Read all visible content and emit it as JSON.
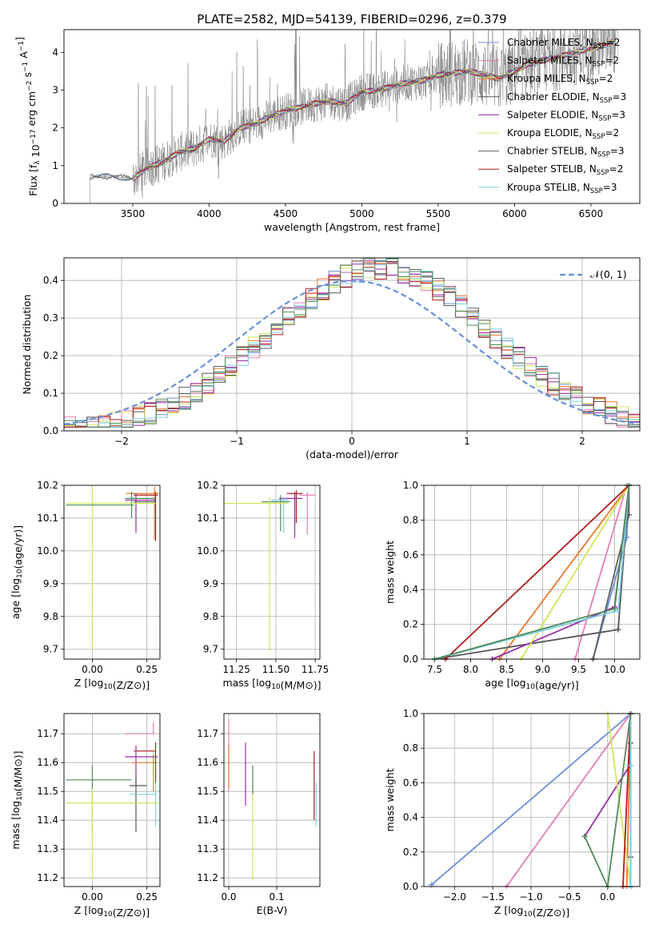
{
  "figure": {
    "title": "PLATE=2582, MJD=54139, FIBERID=0296, z=0.379"
  },
  "colors": {
    "chabrier_miles": "#6a8fd8",
    "salpeter_miles": "#e27fb5",
    "kroupa_miles": "#e8782b",
    "chabrier_elodie": "#555555",
    "salpeter_elodie": "#9a2ba8",
    "kroupa_elodie": "#cfe65a",
    "chabrier_stelib": "#606060",
    "salpeter_stelib": "#b01c1c",
    "kroupa_stelib": "#7fd0e0",
    "green": "#4f8a5a",
    "data_gray": "#7f7f7f",
    "grid": "#b0b0b0"
  },
  "chart_data": [
    {
      "type": "line",
      "id": "spectrum",
      "xlabel": "wavelength [Angstrom, rest frame]",
      "ylabel": "Flux [f_λ 10^-17 erg cm^-2 s^-1 A^-1]",
      "xlim": [
        3050,
        6820
      ],
      "ylim": [
        0,
        4.6
      ],
      "xticks": [
        3500,
        4000,
        4500,
        5000,
        5500,
        6000,
        6500
      ],
      "yticks": [
        0,
        1,
        2,
        3,
        4
      ],
      "grid": false,
      "legend_position": "top-right",
      "data_wave_range": [
        3220,
        6680
      ],
      "model_wave_range": [
        3500,
        6660
      ],
      "model_curve": {
        "wavelength": [
          3220,
          3300,
          3400,
          3500,
          3600,
          3700,
          3800,
          3900,
          4000,
          4100,
          4200,
          4300,
          4400,
          4500,
          4600,
          4700,
          4800,
          4900,
          5000,
          5100,
          5200,
          5300,
          5400,
          5500,
          5600,
          5700,
          5800,
          5900,
          6000,
          6100,
          6200,
          6300,
          6400,
          6500,
          6600,
          6660
        ],
        "flux": [
          0.7,
          0.72,
          0.7,
          0.65,
          0.95,
          1.1,
          1.35,
          1.45,
          1.7,
          1.65,
          2.0,
          2.1,
          2.3,
          2.45,
          2.55,
          2.65,
          2.7,
          2.65,
          2.95,
          3.0,
          3.1,
          3.2,
          3.25,
          3.4,
          3.45,
          3.5,
          3.4,
          3.3,
          3.5,
          3.7,
          3.8,
          3.9,
          4.0,
          4.1,
          4.2,
          4.3
        ]
      },
      "legend": [
        {
          "label": "Chabrier MILES, N",
          "sub": "SSP",
          "suffix": "=2",
          "color_key": "chabrier_miles"
        },
        {
          "label": "Salpeter MILES, N",
          "sub": "SSP",
          "suffix": "=2",
          "color_key": "salpeter_miles"
        },
        {
          "label": "Kroupa MILES, N",
          "sub": "SSP",
          "suffix": "=2",
          "color_key": "kroupa_miles"
        },
        {
          "label": "Chabrier ELODIE, N",
          "sub": "SSP",
          "suffix": "=3",
          "color_key": "chabrier_elodie"
        },
        {
          "label": "Salpeter ELODIE, N",
          "sub": "SSP",
          "suffix": "=3",
          "color_key": "salpeter_elodie"
        },
        {
          "label": "Kroupa ELODIE, N",
          "sub": "SSP",
          "suffix": "=2",
          "color_key": "kroupa_elodie"
        },
        {
          "label": "Chabrier STELIB, N",
          "sub": "SSP",
          "suffix": "=3",
          "color_key": "chabrier_stelib"
        },
        {
          "label": "Salpeter STELIB, N",
          "sub": "SSP",
          "suffix": "=2",
          "color_key": "salpeter_stelib"
        },
        {
          "label": "Kroupa STELIB, N",
          "sub": "SSP",
          "suffix": "=3",
          "color_key": "kroupa_stelib"
        }
      ]
    },
    {
      "type": "histogram",
      "id": "residuals",
      "xlabel": "(data-model)/error",
      "ylabel": "Normed distribution",
      "xlim": [
        -2.5,
        2.5
      ],
      "ylim": [
        0,
        0.46
      ],
      "xticks": [
        -2,
        -1,
        0,
        1,
        2
      ],
      "yticks": [
        0.0,
        0.1,
        0.2,
        0.3,
        0.4
      ],
      "grid": true,
      "legend_position": "top-right",
      "bin_width": 0.1,
      "legend": [
        {
          "label": "𝒩(0, 1)",
          "style": "dashed"
        }
      ],
      "reference_curve": {
        "name": "𝒩(0, 1)",
        "mean": 0,
        "sigma": 1
      }
    },
    {
      "type": "errorbar",
      "id": "age_vs_Z",
      "xlabel": "Z [log10(Z/Z⊙)]",
      "ylabel": "age  [log10(age/yr)]",
      "xlim": [
        -0.13,
        0.31
      ],
      "ylim": [
        9.67,
        10.2
      ],
      "xticks": [
        0.0,
        0.25
      ],
      "yticks": [
        9.7,
        9.8,
        9.9,
        10.0,
        10.1,
        10.2
      ],
      "grid": true,
      "points": [
        {
          "x": 0.285,
          "y": 10.175,
          "xerr": [
            0.13,
            0.02
          ],
          "yerr": [
            0.14,
            0.02
          ],
          "color_key": "kroupa_miles"
        },
        {
          "x": 0.29,
          "y": 10.17,
          "xerr": [
            0.1,
            0.01
          ],
          "yerr": [
            0.14,
            0.01
          ],
          "color_key": "salpeter_stelib"
        },
        {
          "x": 0.2,
          "y": 10.155,
          "xerr": [
            0.05,
            0.09
          ],
          "yerr": [
            0.1,
            0.02
          ],
          "color_key": "salpeter_elodie"
        },
        {
          "x": 0.18,
          "y": 10.16,
          "xerr": [
            0.03,
            0.11
          ],
          "yerr": [
            0.06,
            0.02
          ],
          "color_key": "green"
        },
        {
          "x": 0.29,
          "y": 10.15,
          "xerr": [
            0.1,
            0.0
          ],
          "yerr": [
            0.11,
            0.02
          ],
          "color_key": "chabrier_elodie"
        },
        {
          "x": 0.0,
          "y": 10.145,
          "xerr": [
            0.12,
            0.29
          ],
          "yerr": [
            0.45,
            0.05
          ],
          "color_key": "kroupa_elodie"
        },
        {
          "x": 0.19,
          "y": 10.14,
          "xerr": [
            0.31,
            0.0
          ],
          "yerr": [
            0.0,
            0.0
          ],
          "color_key": "green"
        }
      ]
    },
    {
      "type": "errorbar",
      "id": "age_vs_mass",
      "xlabel": "mass [log10(M/M⊙)]",
      "ylabel": "",
      "xlim": [
        11.17,
        11.78
      ],
      "ylim": [
        9.67,
        10.2
      ],
      "xticks": [
        11.25,
        11.5,
        11.75
      ],
      "yticks": [
        9.7,
        9.8,
        9.9,
        10.0,
        10.1,
        10.2
      ],
      "grid": true,
      "points": [
        {
          "x": 11.63,
          "y": 10.175,
          "xerr": [
            0.06,
            0.04
          ],
          "yerr": [
            0.09,
            0.01
          ],
          "color_key": "salpeter_stelib"
        },
        {
          "x": 11.7,
          "y": 10.17,
          "xerr": [
            0.05,
            0.05
          ],
          "yerr": [
            0.12,
            0.01
          ],
          "color_key": "salpeter_miles"
        },
        {
          "x": 11.62,
          "y": 10.16,
          "xerr": [
            0.1,
            0.05
          ],
          "yerr": [
            0.12,
            0.02
          ],
          "color_key": "salpeter_elodie"
        },
        {
          "x": 11.55,
          "y": 10.155,
          "xerr": [
            0.08,
            0.03
          ],
          "yerr": [
            0.1,
            0.01
          ],
          "color_key": "kroupa_stelib"
        },
        {
          "x": 11.53,
          "y": 10.15,
          "xerr": [
            0.12,
            0.06
          ],
          "yerr": [
            0.09,
            0.02
          ],
          "color_key": "green"
        },
        {
          "x": 11.46,
          "y": 10.145,
          "xerr": [
            0.3,
            0.12
          ],
          "yerr": [
            0.45,
            0.02
          ],
          "color_key": "kroupa_elodie"
        }
      ]
    },
    {
      "type": "line",
      "id": "massweight_vs_age",
      "xlabel": "age  [log10(age/yr)]",
      "ylabel": "mass weight",
      "xlim": [
        7.35,
        10.35
      ],
      "ylim": [
        0,
        1.0
      ],
      "xticks": [
        7.5,
        8.0,
        8.5,
        9.0,
        9.5,
        10.0
      ],
      "yticks": [
        0.0,
        0.2,
        0.4,
        0.6,
        0.8,
        1.0
      ],
      "grid": true,
      "series": [
        {
          "color_key": "chabrier_miles",
          "x": [
            9.7,
            10.17,
            10.2
          ],
          "y": [
            0.0,
            0.7,
            1.0
          ]
        },
        {
          "color_key": "salpeter_miles",
          "x": [
            9.45,
            10.17
          ],
          "y": [
            0.0,
            1.0
          ]
        },
        {
          "color_key": "kroupa_miles",
          "x": [
            8.4,
            10.2
          ],
          "y": [
            0.0,
            1.0
          ]
        },
        {
          "color_key": "chabrier_elodie",
          "x": [
            7.5,
            10.05,
            10.2
          ],
          "y": [
            0.0,
            0.17,
            1.0
          ]
        },
        {
          "color_key": "salpeter_elodie",
          "x": [
            8.3,
            10.0,
            10.2
          ],
          "y": [
            0.0,
            0.3,
            1.0
          ]
        },
        {
          "color_key": "kroupa_elodie",
          "x": [
            8.7,
            10.2
          ],
          "y": [
            0.0,
            1.0
          ]
        },
        {
          "color_key": "chabrier_stelib",
          "x": [
            9.7,
            10.2,
            10.2
          ],
          "y": [
            0.0,
            0.83,
            1.0
          ]
        },
        {
          "color_key": "salpeter_stelib",
          "x": [
            7.65,
            10.2
          ],
          "y": [
            0.0,
            1.0
          ]
        },
        {
          "color_key": "kroupa_stelib",
          "x": [
            7.5,
            10.05,
            10.2
          ],
          "y": [
            0.0,
            0.28,
            1.0
          ]
        },
        {
          "color_key": "green",
          "x": [
            7.5,
            10.0,
            10.2
          ],
          "y": [
            0.0,
            0.29,
            1.0
          ]
        }
      ]
    },
    {
      "type": "errorbar",
      "id": "mass_vs_Z",
      "xlabel": "Z [log10(Z/Z⊙)]",
      "ylabel": "mass [log10(M/M⊙)]",
      "xlim": [
        -0.13,
        0.31
      ],
      "ylim": [
        11.17,
        11.77
      ],
      "xticks": [
        0.0,
        0.25
      ],
      "yticks": [
        11.2,
        11.3,
        11.4,
        11.5,
        11.6,
        11.7
      ],
      "grid": true,
      "points": [
        {
          "x": 0.28,
          "y": 11.7,
          "xerr": [
            0.13,
            0.0
          ],
          "yerr": [
            0.0,
            0.04
          ],
          "color_key": "salpeter_miles"
        },
        {
          "x": 0.29,
          "y": 11.64,
          "xerr": [
            0.1,
            0.0
          ],
          "yerr": [
            0.11,
            0.03
          ],
          "color_key": "salpeter_stelib"
        },
        {
          "x": 0.2,
          "y": 11.62,
          "xerr": [
            0.05,
            0.1
          ],
          "yerr": [
            0.1,
            0.04
          ],
          "color_key": "salpeter_elodie"
        },
        {
          "x": 0.28,
          "y": 11.6,
          "xerr": [
            0.1,
            0.01
          ],
          "yerr": [
            0.1,
            0.03
          ],
          "color_key": "kroupa_miles"
        },
        {
          "x": 0.0,
          "y": 11.54,
          "xerr": [
            0.12,
            0.18
          ],
          "yerr": [
            0.2,
            0.05
          ],
          "color_key": "green"
        },
        {
          "x": 0.2,
          "y": 11.52,
          "xerr": [
            0.03,
            0.05
          ],
          "yerr": [
            0.16,
            0.03
          ],
          "color_key": "chabrier_elodie"
        },
        {
          "x": 0.29,
          "y": 11.49,
          "xerr": [
            0.12,
            0.0
          ],
          "yerr": [
            0.11,
            0.04
          ],
          "color_key": "kroupa_stelib"
        },
        {
          "x": 0.0,
          "y": 11.46,
          "xerr": [
            0.12,
            0.3
          ],
          "yerr": [
            0.27,
            0.05
          ],
          "color_key": "kroupa_elodie"
        }
      ]
    },
    {
      "type": "errorbar",
      "id": "mass_vs_EBV",
      "xlabel": "E(B-V)",
      "ylabel": "",
      "xlim": [
        -0.01,
        0.19
      ],
      "ylim": [
        11.17,
        11.77
      ],
      "xticks": [
        0.0,
        0.1
      ],
      "yticks": [
        11.2,
        11.3,
        11.4,
        11.5,
        11.6,
        11.7
      ],
      "grid": true,
      "points": [
        {
          "x": 0.0,
          "y": 11.7,
          "xerr": [
            0,
            0
          ],
          "yerr": [
            0.2,
            0.05
          ],
          "color_key": "salpeter_miles"
        },
        {
          "x": 0.0,
          "y": 11.6,
          "xerr": [
            0,
            0
          ],
          "yerr": [
            0.09,
            0.06
          ],
          "color_key": "kroupa_miles"
        },
        {
          "x": 0.035,
          "y": 11.6,
          "xerr": [
            0,
            0
          ],
          "yerr": [
            0.15,
            0.07
          ],
          "color_key": "salpeter_elodie"
        },
        {
          "x": 0.05,
          "y": 11.46,
          "xerr": [
            0,
            0
          ],
          "yerr": [
            0.27,
            0.07
          ],
          "color_key": "kroupa_elodie"
        },
        {
          "x": 0.05,
          "y": 11.54,
          "xerr": [
            0,
            0
          ],
          "yerr": [
            0.05,
            0.05
          ],
          "color_key": "green"
        },
        {
          "x": 0.178,
          "y": 11.55,
          "xerr": [
            0,
            0
          ],
          "yerr": [
            0.15,
            0.09
          ],
          "color_key": "salpeter_stelib"
        },
        {
          "x": 0.182,
          "y": 11.49,
          "xerr": [
            0,
            0
          ],
          "yerr": [
            0.11,
            0.04
          ],
          "color_key": "kroupa_stelib"
        }
      ]
    },
    {
      "type": "line",
      "id": "massweight_vs_Z",
      "xlabel": "Z [log10(Z/Z⊙)]",
      "ylabel": "mass weight",
      "xlim": [
        -2.4,
        0.42
      ],
      "ylim": [
        0,
        1.0
      ],
      "xticks": [
        -2.0,
        -1.5,
        -1.0,
        -0.5,
        0.0
      ],
      "yticks": [
        0.0,
        0.2,
        0.4,
        0.6,
        0.8,
        1.0
      ],
      "grid": true,
      "series": [
        {
          "color_key": "chabrier_miles",
          "x": [
            -2.3,
            0.3
          ],
          "y": [
            0.01,
            1.0
          ]
        },
        {
          "color_key": "salpeter_miles",
          "x": [
            -1.32,
            0.3
          ],
          "y": [
            0.0,
            1.0
          ]
        },
        {
          "color_key": "kroupa_miles",
          "x": [
            0.25,
            0.3
          ],
          "y": [
            0.0,
            1.0
          ]
        },
        {
          "color_key": "chabrier_elodie",
          "x": [
            0.3,
            0.3,
            0.3
          ],
          "y": [
            0.0,
            0.17,
            1.0
          ]
        },
        {
          "color_key": "salpeter_elodie",
          "x": [
            -0.3,
            0.29,
            0.3
          ],
          "y": [
            0.29,
            0.7,
            1.0
          ]
        },
        {
          "color_key": "kroupa_elodie",
          "x": [
            0.0,
            0.3
          ],
          "y": [
            1.0,
            0.0
          ]
        },
        {
          "color_key": "chabrier_stelib",
          "x": [
            0.3,
            0.3,
            0.3
          ],
          "y": [
            0.0,
            0.83,
            1.0
          ]
        },
        {
          "color_key": "salpeter_stelib",
          "x": [
            0.2,
            0.3
          ],
          "y": [
            0.0,
            1.0
          ]
        },
        {
          "color_key": "kroupa_stelib",
          "x": [
            0.3,
            0.3,
            0.3
          ],
          "y": [
            0.0,
            0.7,
            1.0
          ]
        },
        {
          "color_key": "green",
          "x": [
            -0.3,
            0.0,
            0.3
          ],
          "y": [
            0.29,
            0.0,
            1.0
          ]
        }
      ]
    }
  ]
}
